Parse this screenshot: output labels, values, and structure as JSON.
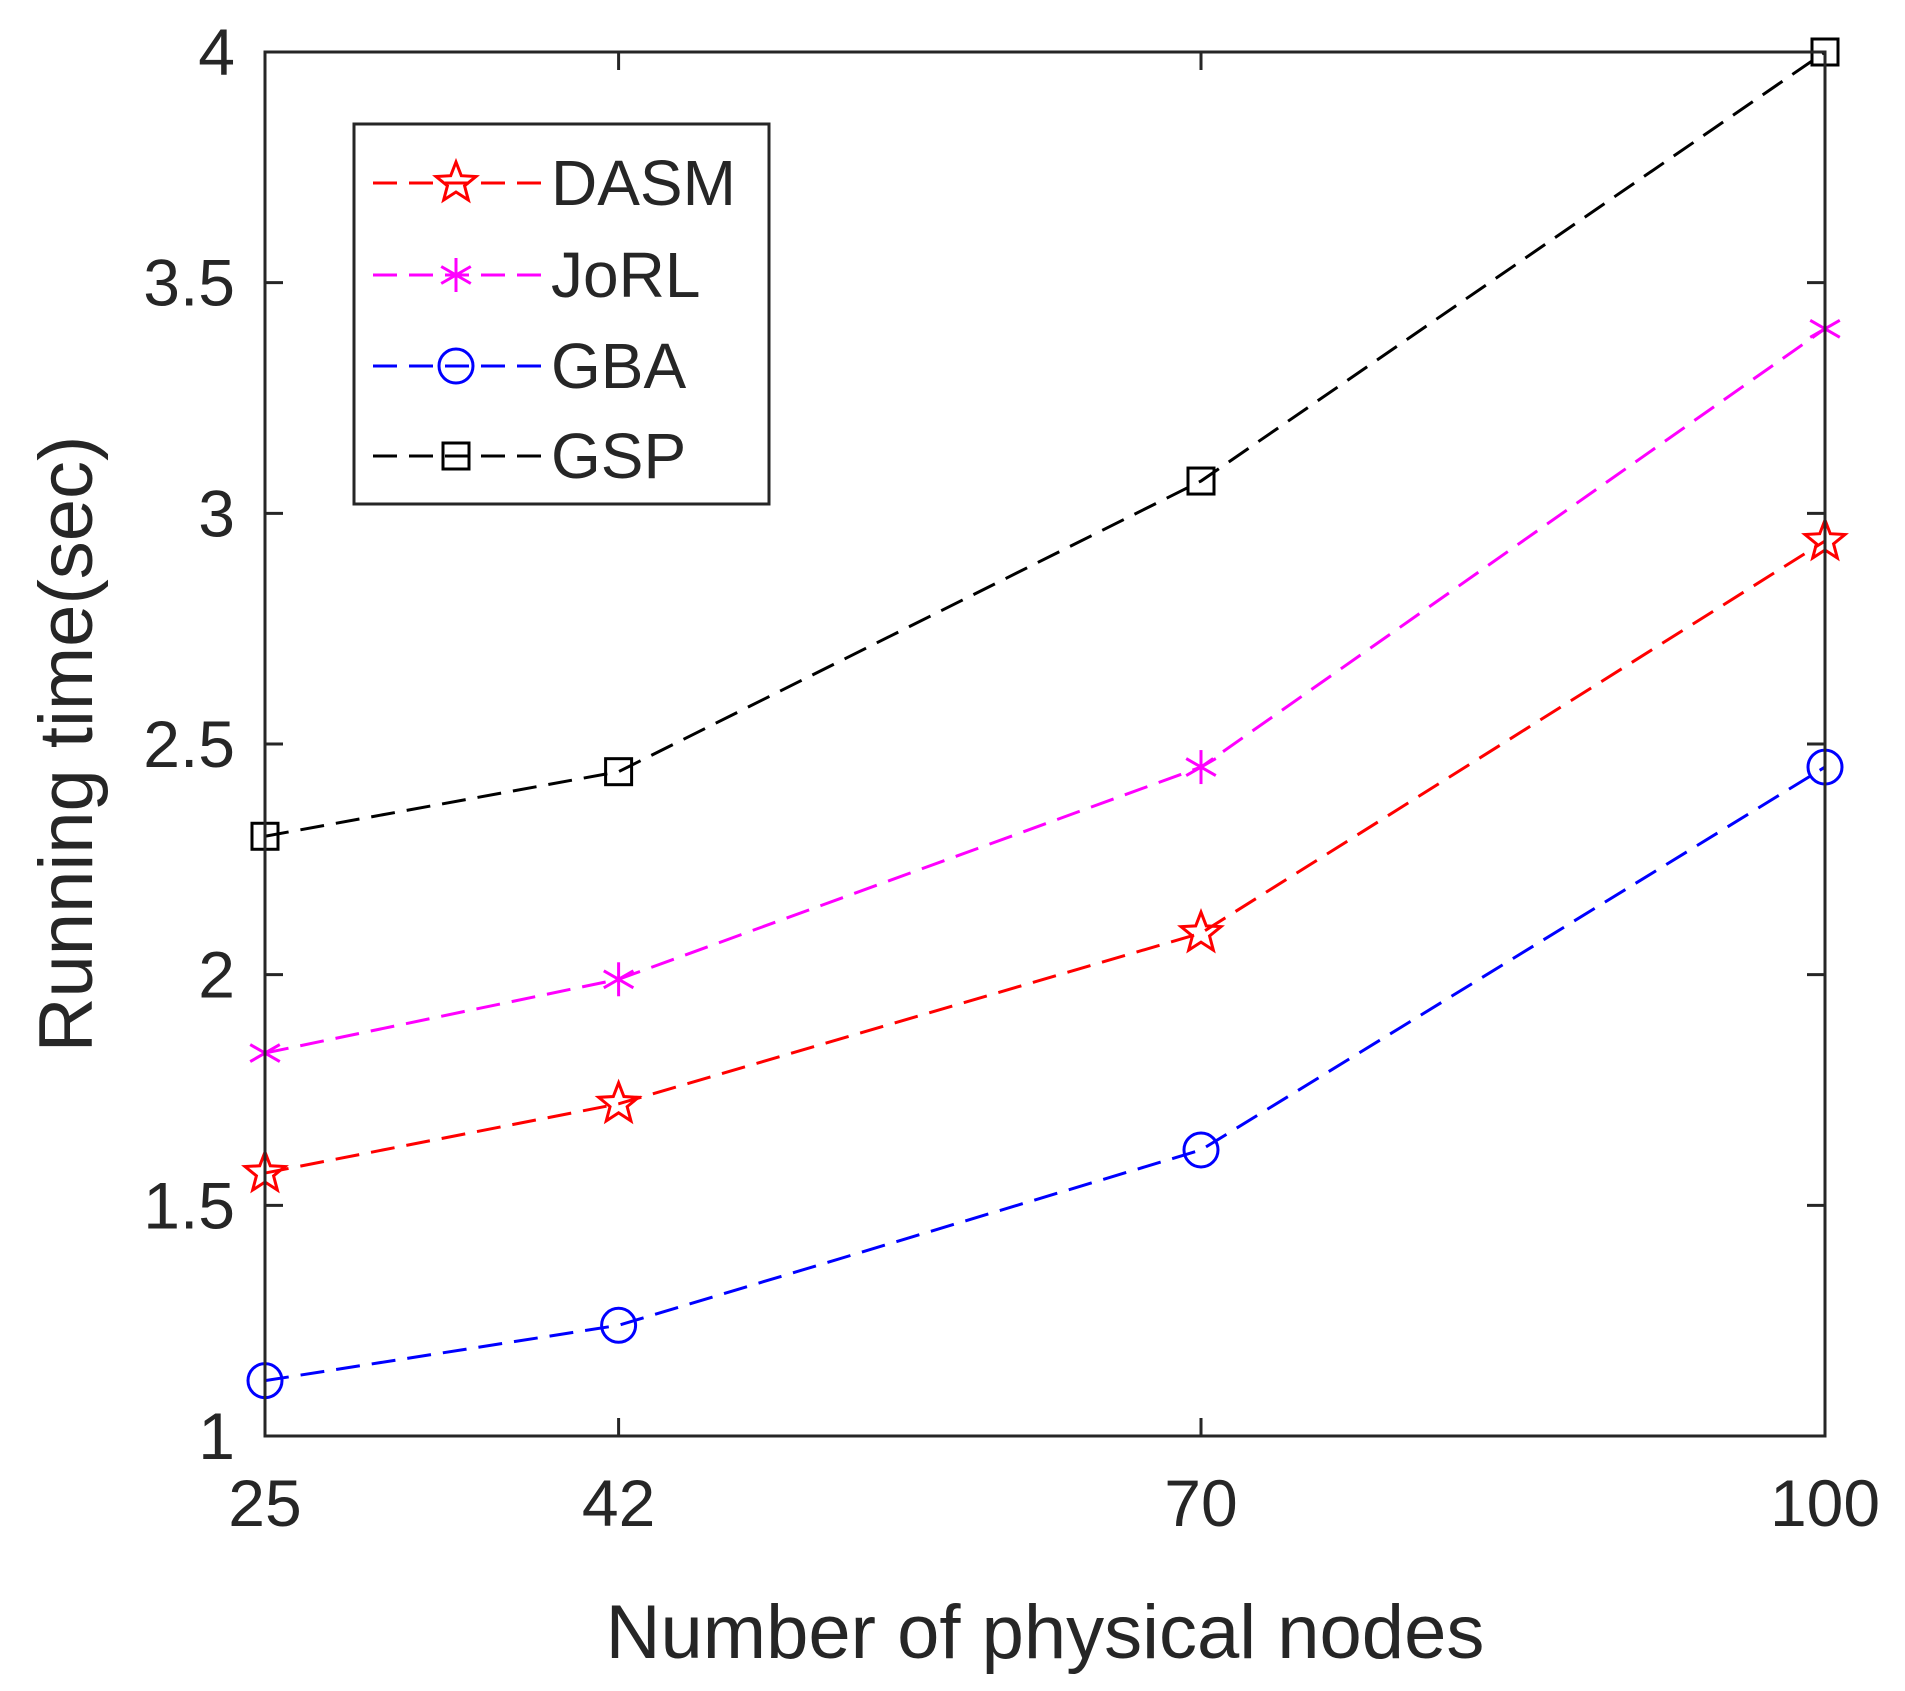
{
  "chart_data": {
    "type": "line",
    "title": "",
    "xlabel": "Number of physical nodes",
    "ylabel": "Running time(sec)",
    "x": [
      25,
      42,
      70,
      100
    ],
    "x_tick_labels": [
      "25",
      "42",
      "70",
      "100"
    ],
    "ylim": [
      1,
      4
    ],
    "y_ticks": [
      1,
      1.5,
      2,
      2.5,
      3,
      3.5,
      4
    ],
    "y_tick_labels": [
      "1",
      "1.5",
      "2",
      "2.5",
      "3",
      "3.5",
      "4"
    ],
    "grid": false,
    "legend_position": "top-left",
    "series": [
      {
        "name": "DASM",
        "values": [
          1.57,
          1.72,
          2.09,
          2.94
        ],
        "color": "#ff0000",
        "marker": "star",
        "line_style": "dashed"
      },
      {
        "name": "JoRL",
        "values": [
          1.83,
          1.99,
          2.45,
          3.4
        ],
        "color": "#ff00ff",
        "marker": "asterisk",
        "line_style": "dashed"
      },
      {
        "name": "GBA",
        "values": [
          1.12,
          1.24,
          1.62,
          2.45
        ],
        "color": "#0000ff",
        "marker": "circle",
        "line_style": "dashed"
      },
      {
        "name": "GSP",
        "values": [
          2.3,
          2.44,
          3.07,
          4.0
        ],
        "color": "#000000",
        "marker": "square",
        "line_style": "dashed"
      }
    ]
  }
}
